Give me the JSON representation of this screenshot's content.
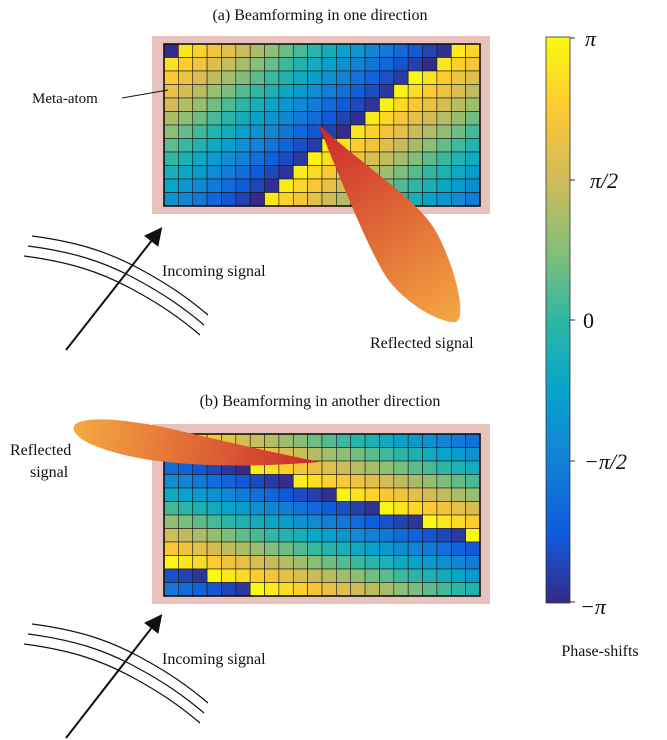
{
  "panel_a": {
    "title": "(a) Beamforming in one direction",
    "meta_atom_label": "Meta-atom",
    "incoming_label": "Incoming signal",
    "reflected_label": "Reflected signal",
    "grid": {
      "rows": 12,
      "cols": 22,
      "pattern": "single-direction gradient"
    }
  },
  "panel_b": {
    "title": "(b) Beamforming in another direction",
    "incoming_label": "Incoming signal",
    "reflected_label_lines": [
      "Reflected",
      "signal"
    ],
    "grid": {
      "rows": 12,
      "cols": 22,
      "pattern": "diagonal stripes"
    }
  },
  "colorbar": {
    "label": "Phase-shifts",
    "ticks": [
      "π",
      "π/2",
      "0",
      "−π/2",
      "−π"
    ],
    "tick_values": [
      3.1416,
      1.5708,
      0,
      -1.5708,
      -3.1416
    ],
    "colormap": [
      "#352a87",
      "#0f5cdd",
      "#1481d6",
      "#06a4ca",
      "#2eb7a4",
      "#87bf77",
      "#d1bb59",
      "#fec832",
      "#f9fb0e"
    ]
  },
  "colors": {
    "surface_border": "#e8c2bd",
    "beam_start": "#f5a742",
    "beam_end": "#c9282a",
    "wave_line": "#111111",
    "arrow": "#111111"
  }
}
